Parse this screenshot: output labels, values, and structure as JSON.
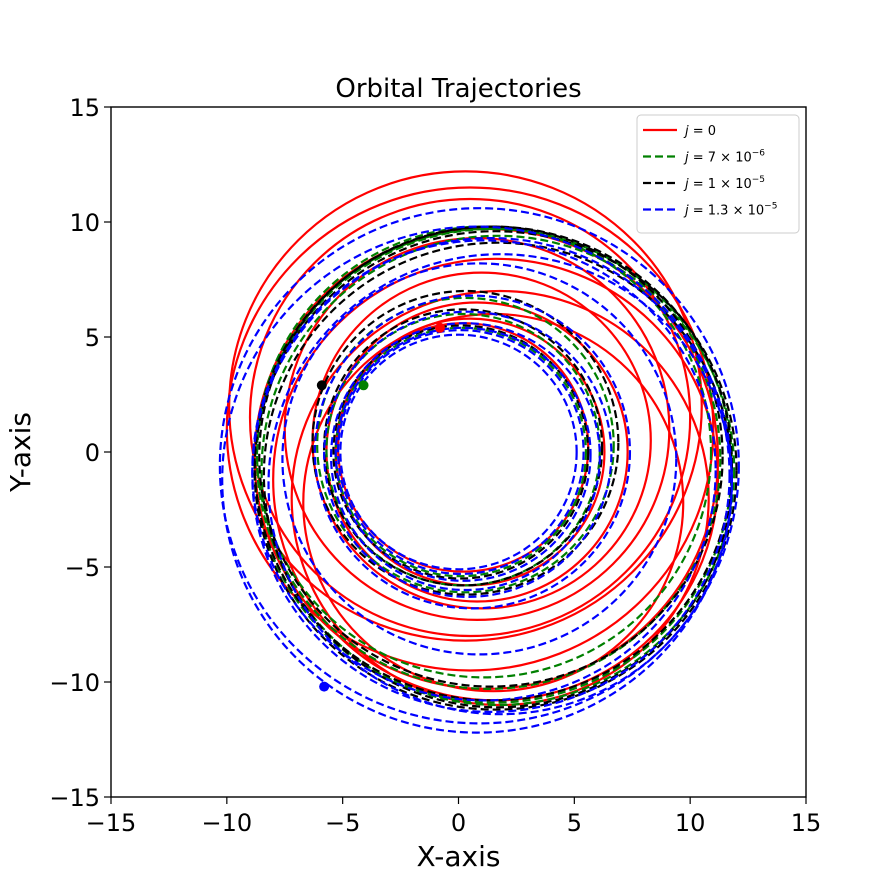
{
  "chart_data": {
    "type": "line",
    "title": "Orbital Trajectories",
    "xlabel": "X-axis",
    "ylabel": "Y-axis",
    "xlim": [
      -15,
      15
    ],
    "ylim": [
      -15,
      15
    ],
    "xticks": [
      "−15",
      "−10",
      "−5",
      "0",
      "5",
      "10",
      "15"
    ],
    "yticks": [
      "−15",
      "−10",
      "−5",
      "0",
      "5",
      "10",
      "15"
    ],
    "grid": false,
    "legend_position": "top-right",
    "series": [
      {
        "name": "j = 0",
        "legend_parts": [
          "j",
          " = 0",
          ""
        ],
        "color": "#ff0000",
        "dash": "solid",
        "loops": [
          {
            "cx": 0.2,
            "cy": 0.2,
            "r": 5.4
          },
          {
            "cx": 0.5,
            "cy": 0.0,
            "r": 5.8
          },
          {
            "cx": 0.8,
            "cy": 0.0,
            "r": 6.5
          },
          {
            "cx": 1.0,
            "cy": 0.5,
            "r": 7.3
          },
          {
            "cx": 0.8,
            "cy": 1.0,
            "r": 8.3
          },
          {
            "cx": 0.5,
            "cy": 1.5,
            "r": 9.5
          },
          {
            "cx": 0.3,
            "cy": 2.0,
            "r": 10.2
          },
          {
            "cx": 0.5,
            "cy": 1.0,
            "r": 10.5
          },
          {
            "cx": 1.2,
            "cy": -0.3,
            "r": 10.0
          },
          {
            "cx": 1.6,
            "cy": -1.2,
            "r": 9.6
          },
          {
            "cx": 1.8,
            "cy": -2.0,
            "r": 9.0
          },
          {
            "cx": 1.5,
            "cy": -2.2,
            "r": 8.2
          }
        ],
        "marker": {
          "x": -0.8,
          "y": 5.4
        }
      },
      {
        "name": "j = 7 × 10⁻⁶",
        "legend_parts": [
          "j",
          " = 7 × 10",
          "−6"
        ],
        "color": "#008000",
        "dash": "dashed",
        "loops": [
          {
            "cx": 0.1,
            "cy": 0.0,
            "r": 5.4
          },
          {
            "cx": 0.2,
            "cy": 0.1,
            "r": 5.9
          },
          {
            "cx": 0.3,
            "cy": 0.3,
            "r": 6.4
          },
          {
            "cx": 1.1,
            "cy": 0.0,
            "r": 9.8
          },
          {
            "cx": 1.3,
            "cy": -0.3,
            "r": 10.0
          },
          {
            "cx": 1.5,
            "cy": -0.6,
            "r": 10.3
          },
          {
            "cx": 1.7,
            "cy": -0.8,
            "r": 10.2
          }
        ],
        "marker": {
          "x": -4.1,
          "y": 2.9
        }
      },
      {
        "name": "j = 1 × 10⁻⁵",
        "legend_parts": [
          "j",
          " = 1 × 10",
          "−5"
        ],
        "color": "#000000",
        "dash": "dashed",
        "loops": [
          {
            "cx": 0.1,
            "cy": 0.0,
            "r": 5.5
          },
          {
            "cx": 0.2,
            "cy": 0.2,
            "r": 6.0
          },
          {
            "cx": 0.3,
            "cy": 0.4,
            "r": 6.6
          },
          {
            "cx": 1.4,
            "cy": -0.2,
            "r": 10.0
          },
          {
            "cx": 1.5,
            "cy": -0.5,
            "r": 10.3
          },
          {
            "cx": 1.6,
            "cy": -0.8,
            "r": 10.4
          },
          {
            "cx": 1.7,
            "cy": -1.0,
            "r": 10.1
          }
        ],
        "marker": {
          "x": -5.9,
          "y": 2.9
        }
      },
      {
        "name": "j = 1.3 × 10⁻⁵",
        "legend_parts": [
          "j",
          " = 1.3 × 10",
          "−5"
        ],
        "color": "#0000ff",
        "dash": "dashed",
        "loops": [
          {
            "cx": 0.0,
            "cy": 0.0,
            "r": 5.1
          },
          {
            "cx": 0.1,
            "cy": 0.0,
            "r": 5.3
          },
          {
            "cx": 0.2,
            "cy": -0.1,
            "r": 5.5
          },
          {
            "cx": 0.3,
            "cy": -0.2,
            "r": 5.8
          },
          {
            "cx": 0.4,
            "cy": -0.1,
            "r": 6.2
          },
          {
            "cx": 0.6,
            "cy": 0.0,
            "r": 6.8
          },
          {
            "cx": 0.9,
            "cy": -0.3,
            "r": 8.5
          },
          {
            "cx": 1.1,
            "cy": -0.8,
            "r": 10.0
          },
          {
            "cx": 1.4,
            "cy": -1.0,
            "r": 10.3
          },
          {
            "cx": 1.8,
            "cy": -1.4,
            "r": 10.0
          },
          {
            "cx": 0.8,
            "cy": -1.2,
            "r": 11.0
          },
          {
            "cx": 0.9,
            "cy": -0.6,
            "r": 11.2
          }
        ],
        "marker": {
          "x": -5.8,
          "y": -10.2
        }
      }
    ]
  }
}
